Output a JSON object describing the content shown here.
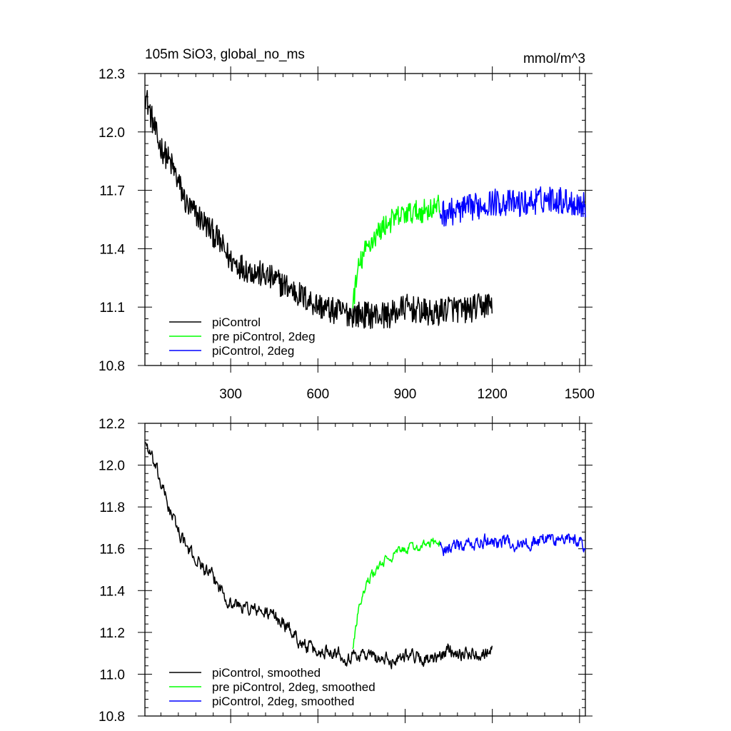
{
  "chart_data": [
    {
      "type": "line",
      "title": "105m SiO3, global_no_ms",
      "units": "mmol/m^3",
      "xlim": [
        5,
        1520
      ],
      "ylim": [
        10.8,
        12.3
      ],
      "x_ticks": [
        300,
        600,
        900,
        1200,
        1500
      ],
      "y_ticks": [
        10.8,
        11.1,
        11.4,
        11.7,
        12.0,
        12.3
      ],
      "y_tick_labels": [
        "10.8",
        "11.1",
        "11.4",
        "11.7",
        "12.0",
        "12.3"
      ],
      "legend_position": "bottom-left",
      "series": [
        {
          "name": "piControl",
          "color": "#000000",
          "x": [
            5,
            50,
            100,
            150,
            200,
            250,
            300,
            350,
            400,
            450,
            500,
            550,
            600,
            650,
            700,
            750,
            800,
            850,
            900,
            950,
            1000,
            1050,
            1100,
            1150,
            1200
          ],
          "y": [
            12.2,
            11.95,
            11.82,
            11.62,
            11.55,
            11.46,
            11.34,
            11.3,
            11.27,
            11.24,
            11.2,
            11.15,
            11.11,
            11.08,
            11.07,
            11.06,
            11.06,
            11.06,
            11.1,
            11.08,
            11.06,
            11.1,
            11.08,
            11.1,
            11.12
          ],
          "noise": 0.07
        },
        {
          "name": "pre piControl, 2deg",
          "color": "#00ff00",
          "x": [
            720,
            740,
            760,
            780,
            800,
            830,
            860,
            900,
            950,
            1000,
            1020
          ],
          "y": [
            11.12,
            11.3,
            11.38,
            11.43,
            11.47,
            11.52,
            11.55,
            11.58,
            11.59,
            11.61,
            11.62
          ],
          "noise": 0.06
        },
        {
          "name": "piControl, 2deg",
          "color": "#0000ff",
          "x": [
            1020,
            1100,
            1200,
            1300,
            1400,
            1500,
            1520
          ],
          "y": [
            11.58,
            11.6,
            11.64,
            11.63,
            11.66,
            11.63,
            11.62
          ],
          "noise": 0.07
        }
      ]
    },
    {
      "type": "line",
      "title": "",
      "xlim": [
        5,
        1520
      ],
      "ylim": [
        10.8,
        12.2
      ],
      "x_ticks": [
        300,
        600,
        900,
        1200,
        1500
      ],
      "y_ticks": [
        10.8,
        11.0,
        11.2,
        11.4,
        11.6,
        11.8,
        12.0,
        12.2
      ],
      "y_tick_labels": [
        "10.8",
        "11.0",
        "11.2",
        "11.4",
        "11.6",
        "11.8",
        "12.0",
        "12.2"
      ],
      "legend_position": "bottom-left",
      "series": [
        {
          "name": "piControl, smoothed",
          "color": "#000000",
          "x": [
            5,
            50,
            100,
            150,
            200,
            250,
            300,
            350,
            400,
            450,
            500,
            550,
            600,
            650,
            700,
            750,
            800,
            850,
            900,
            950,
            1000,
            1050,
            1100,
            1150,
            1200
          ],
          "y": [
            12.12,
            11.95,
            11.75,
            11.6,
            11.52,
            11.44,
            11.34,
            11.32,
            11.3,
            11.28,
            11.22,
            11.14,
            11.1,
            11.12,
            11.08,
            11.1,
            11.08,
            11.06,
            11.1,
            11.08,
            11.06,
            11.12,
            11.1,
            11.1,
            11.12
          ],
          "noise": 0.045
        },
        {
          "name": "pre piControl, 2deg, smoothed",
          "color": "#00ff00",
          "x": [
            720,
            740,
            760,
            780,
            800,
            830,
            860,
            900,
            950,
            1000,
            1020
          ],
          "y": [
            11.12,
            11.32,
            11.4,
            11.46,
            11.5,
            11.54,
            11.57,
            11.6,
            11.61,
            11.63,
            11.63
          ],
          "noise": 0.03
        },
        {
          "name": "piControl, 2deg, smoothed",
          "color": "#0000ff",
          "x": [
            1020,
            1100,
            1200,
            1300,
            1400,
            1500,
            1520
          ],
          "y": [
            11.6,
            11.61,
            11.64,
            11.62,
            11.65,
            11.63,
            11.62
          ],
          "noise": 0.045
        }
      ]
    }
  ]
}
